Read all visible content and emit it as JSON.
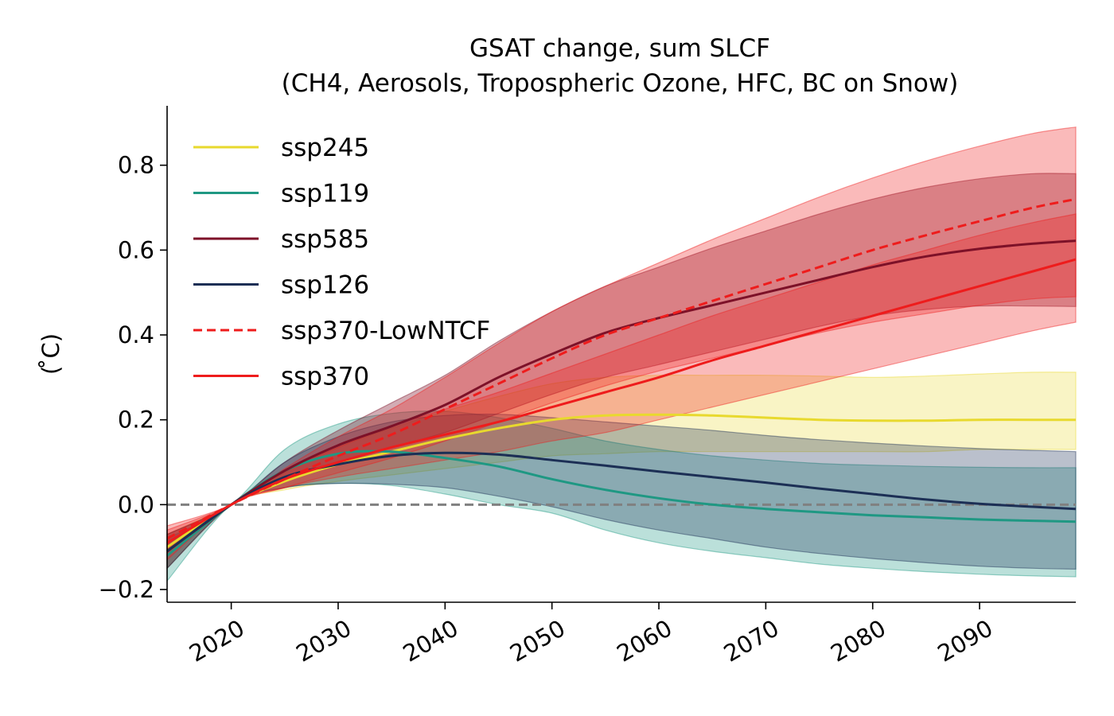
{
  "chart_data": {
    "type": "line",
    "title_line1": "GSAT change, sum SLCF",
    "title_line2": "(CH4, Aerosols, Tropospheric Ozone, HFC, BC on Snow)",
    "xlabel": "",
    "ylabel": "( ̊C)",
    "xlim": [
      2014,
      2099
    ],
    "ylim": [
      -0.23,
      0.94
    ],
    "xticks": [
      2020,
      2030,
      2040,
      2050,
      2060,
      2070,
      2080,
      2090
    ],
    "yticks": [
      -0.2,
      0.0,
      0.2,
      0.4,
      0.6,
      0.8
    ],
    "ytick_labels": [
      "−0.2",
      "0.0",
      "0.2",
      "0.4",
      "0.6",
      "0.8"
    ],
    "zero_line": {
      "y": 0.0,
      "style": "dashed",
      "color": "#808080"
    },
    "grid": false,
    "legend_position": "top-left",
    "x": [
      2014,
      2020,
      2025,
      2030,
      2035,
      2040,
      2045,
      2050,
      2055,
      2060,
      2065,
      2070,
      2075,
      2080,
      2085,
      2090,
      2095,
      2099
    ],
    "series": [
      {
        "name": "ssp245",
        "color": "#e8d92e",
        "dash": "solid",
        "band_opacity": 0.28,
        "values": [
          -0.1,
          0.0,
          0.055,
          0.095,
          0.125,
          0.155,
          0.18,
          0.2,
          0.21,
          0.212,
          0.21,
          0.205,
          0.2,
          0.198,
          0.198,
          0.2,
          0.2,
          0.2
        ],
        "lower": [
          -0.15,
          0.0,
          0.035,
          0.055,
          0.07,
          0.085,
          0.1,
          0.115,
          0.12,
          0.125,
          0.125,
          0.125,
          0.125,
          0.125,
          0.125,
          0.13,
          0.13,
          0.13
        ],
        "upper": [
          -0.07,
          0.0,
          0.075,
          0.135,
          0.18,
          0.22,
          0.255,
          0.285,
          0.3,
          0.305,
          0.305,
          0.305,
          0.303,
          0.3,
          0.303,
          0.308,
          0.312,
          0.312
        ]
      },
      {
        "name": "ssp119",
        "color": "#1f9883",
        "dash": "solid",
        "band_opacity": 0.3,
        "values": [
          -0.12,
          0.0,
          0.08,
          0.12,
          0.125,
          0.11,
          0.09,
          0.06,
          0.035,
          0.015,
          0.0,
          -0.01,
          -0.018,
          -0.025,
          -0.03,
          -0.035,
          -0.038,
          -0.04
        ],
        "lower": [
          -0.18,
          0.0,
          0.04,
          0.05,
          0.045,
          0.025,
          0.0,
          -0.02,
          -0.06,
          -0.09,
          -0.11,
          -0.125,
          -0.14,
          -0.15,
          -0.158,
          -0.164,
          -0.168,
          -0.17
        ],
        "upper": [
          -0.08,
          0.0,
          0.13,
          0.19,
          0.215,
          0.22,
          0.205,
          0.18,
          0.15,
          0.13,
          0.115,
          0.105,
          0.097,
          0.093,
          0.09,
          0.088,
          0.087,
          0.087
        ]
      },
      {
        "name": "ssp585",
        "color": "#7d1128",
        "dash": "solid",
        "band_opacity": 0.35,
        "values": [
          -0.11,
          0.0,
          0.08,
          0.14,
          0.185,
          0.235,
          0.3,
          0.355,
          0.405,
          0.44,
          0.47,
          0.5,
          0.53,
          0.56,
          0.585,
          0.603,
          0.615,
          0.622
        ],
        "lower": [
          -0.15,
          0.0,
          0.06,
          0.1,
          0.135,
          0.17,
          0.215,
          0.26,
          0.3,
          0.33,
          0.36,
          0.39,
          0.42,
          0.445,
          0.46,
          0.468,
          0.468,
          0.467
        ],
        "upper": [
          -0.07,
          0.0,
          0.1,
          0.175,
          0.24,
          0.305,
          0.385,
          0.455,
          0.515,
          0.56,
          0.605,
          0.645,
          0.685,
          0.72,
          0.748,
          0.768,
          0.78,
          0.78
        ]
      },
      {
        "name": "ssp126",
        "color": "#1c2f55",
        "dash": "solid",
        "band_opacity": 0.3,
        "values": [
          -0.11,
          0.0,
          0.065,
          0.095,
          0.115,
          0.122,
          0.118,
          0.105,
          0.092,
          0.078,
          0.065,
          0.052,
          0.038,
          0.025,
          0.012,
          0.002,
          -0.005,
          -0.01
        ],
        "lower": [
          -0.15,
          0.0,
          0.04,
          0.05,
          0.048,
          0.04,
          0.02,
          -0.005,
          -0.035,
          -0.06,
          -0.08,
          -0.1,
          -0.115,
          -0.127,
          -0.137,
          -0.145,
          -0.15,
          -0.152
        ],
        "upper": [
          -0.07,
          0.0,
          0.1,
          0.16,
          0.195,
          0.21,
          0.213,
          0.205,
          0.195,
          0.185,
          0.175,
          0.163,
          0.153,
          0.145,
          0.138,
          0.132,
          0.128,
          0.125
        ]
      },
      {
        "name": "ssp370-LowNTCF",
        "color": "#ee1c1c",
        "dash": "dashed",
        "band_opacity": 0.3,
        "values": [
          -0.08,
          0.0,
          0.06,
          0.115,
          0.165,
          0.225,
          0.285,
          0.345,
          0.4,
          0.44,
          0.48,
          0.52,
          0.56,
          0.6,
          0.635,
          0.668,
          0.7,
          0.72
        ],
        "lower": [
          -0.12,
          0.0,
          0.04,
          0.075,
          0.11,
          0.15,
          0.195,
          0.24,
          0.28,
          0.315,
          0.345,
          0.375,
          0.405,
          0.43,
          0.45,
          0.47,
          0.485,
          0.49
        ],
        "upper": [
          -0.05,
          0.0,
          0.085,
          0.16,
          0.225,
          0.3,
          0.38,
          0.455,
          0.515,
          0.57,
          0.625,
          0.675,
          0.725,
          0.77,
          0.81,
          0.845,
          0.875,
          0.89
        ]
      },
      {
        "name": "ssp370",
        "color": "#ee1c1c",
        "dash": "solid",
        "band_opacity": 0.3,
        "values": [
          -0.09,
          0.0,
          0.06,
          0.1,
          0.135,
          0.165,
          0.195,
          0.23,
          0.265,
          0.3,
          0.34,
          0.375,
          0.41,
          0.445,
          0.48,
          0.515,
          0.55,
          0.578
        ],
        "lower": [
          -0.13,
          0.0,
          0.04,
          0.065,
          0.085,
          0.105,
          0.125,
          0.15,
          0.17,
          0.2,
          0.23,
          0.26,
          0.29,
          0.32,
          0.35,
          0.38,
          0.41,
          0.43
        ],
        "upper": [
          -0.06,
          0.0,
          0.08,
          0.135,
          0.185,
          0.225,
          0.265,
          0.31,
          0.355,
          0.4,
          0.445,
          0.485,
          0.525,
          0.565,
          0.6,
          0.635,
          0.665,
          0.685
        ]
      }
    ]
  }
}
